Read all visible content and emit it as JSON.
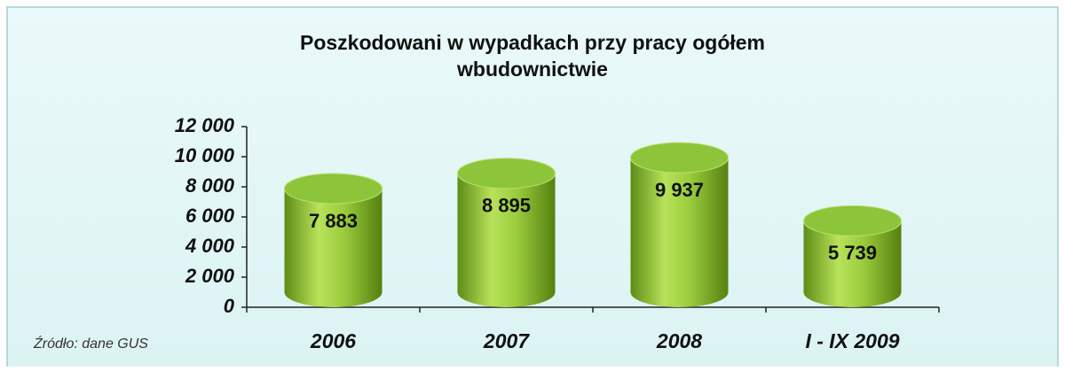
{
  "chart_data": {
    "type": "bar",
    "title": "Poszkodowani w wypadkach przy pracy ogółem",
    "subtitle": "wbudownictwie",
    "source": "Źródło: dane GUS",
    "categories": [
      "2006",
      "2007",
      "2008",
      "I - IX 2009"
    ],
    "values": [
      7883,
      8895,
      9937,
      5739
    ],
    "value_labels": [
      "7 883",
      "8 895",
      "9 937",
      "5 739"
    ],
    "color": "#8cc43a",
    "ylim": [
      0,
      12000
    ],
    "yticks": [
      0,
      {
        "value": 2000,
        "label": "2 000"
      },
      {
        "value": 4000,
        "label": "4 000"
      },
      {
        "value": 6000,
        "label": "6 000"
      },
      {
        "value": 8000,
        "label": "8 000"
      },
      {
        "value": 10000,
        "label": "10 000"
      },
      {
        "value": 12000,
        "label": "12 000"
      }
    ]
  }
}
